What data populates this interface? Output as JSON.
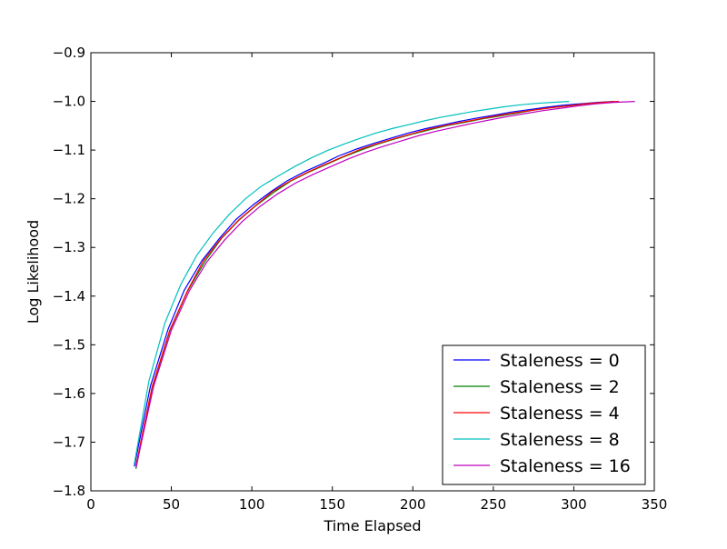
{
  "chart_data": {
    "type": "line",
    "title": "",
    "xlabel": "Time Elapsed",
    "ylabel": "Log Likelihood",
    "xlim": [
      0,
      350
    ],
    "ylim": [
      -1.8,
      -0.9
    ],
    "xticks": [
      0,
      50,
      100,
      150,
      200,
      250,
      300,
      350
    ],
    "yticks": [
      -1.8,
      -1.7,
      -1.6,
      -1.5,
      -1.4,
      -1.3,
      -1.2,
      -1.1,
      -1.0,
      -0.9
    ],
    "xtick_labels": [
      "0",
      "50",
      "100",
      "150",
      "200",
      "250",
      "300",
      "350"
    ],
    "ytick_labels": [
      "−1.8",
      "−1.7",
      "−1.6",
      "−1.5",
      "−1.4",
      "−1.3",
      "−1.2",
      "−1.1",
      "−1.0",
      "−0.9"
    ],
    "grid": false,
    "legend_position": "lower-right",
    "series": [
      {
        "name": "Staleness = 0",
        "color": "#0000ff",
        "x": [
          27,
          37,
          48,
          58,
          69,
          80,
          90,
          101,
          112,
          122,
          133,
          144,
          154,
          165,
          176,
          187,
          197,
          208,
          219,
          229,
          240,
          251,
          261,
          272,
          283,
          293,
          304,
          315,
          325
        ],
        "y": [
          -1.75,
          -1.585,
          -1.468,
          -1.388,
          -1.327,
          -1.281,
          -1.243,
          -1.212,
          -1.185,
          -1.163,
          -1.144,
          -1.128,
          -1.112,
          -1.098,
          -1.086,
          -1.075,
          -1.065,
          -1.056,
          -1.048,
          -1.041,
          -1.034,
          -1.028,
          -1.022,
          -1.017,
          -1.012,
          -1.008,
          -1.005,
          -1.002,
          -1.0
        ]
      },
      {
        "name": "Staleness = 2",
        "color": "#008000",
        "x": [
          28,
          38,
          49,
          60,
          71,
          81,
          92,
          103,
          114,
          124,
          135,
          146,
          157,
          168,
          178,
          189,
          200,
          211,
          221,
          232,
          243,
          254,
          265,
          275,
          286,
          297,
          308,
          318,
          328
        ],
        "y": [
          -1.755,
          -1.59,
          -1.472,
          -1.39,
          -1.328,
          -1.282,
          -1.244,
          -1.213,
          -1.186,
          -1.164,
          -1.146,
          -1.13,
          -1.114,
          -1.1,
          -1.088,
          -1.077,
          -1.067,
          -1.058,
          -1.05,
          -1.043,
          -1.036,
          -1.03,
          -1.024,
          -1.018,
          -1.013,
          -1.009,
          -1.005,
          -1.002,
          -1.0
        ]
      },
      {
        "name": "Staleness = 4",
        "color": "#ff0000",
        "x": [
          28,
          38,
          49,
          60,
          70,
          81,
          92,
          103,
          113,
          124,
          135,
          146,
          157,
          167,
          178,
          189,
          200,
          210,
          221,
          232,
          243,
          253,
          264,
          275,
          286,
          297,
          307,
          318,
          328
        ],
        "y": [
          -1.748,
          -1.587,
          -1.47,
          -1.389,
          -1.327,
          -1.281,
          -1.243,
          -1.212,
          -1.185,
          -1.163,
          -1.145,
          -1.129,
          -1.113,
          -1.099,
          -1.087,
          -1.076,
          -1.066,
          -1.057,
          -1.049,
          -1.042,
          -1.035,
          -1.029,
          -1.023,
          -1.018,
          -1.013,
          -1.009,
          -1.005,
          -1.002,
          -1.0
        ]
      },
      {
        "name": "Staleness = 8",
        "color": "#00bfbf",
        "x": [
          27,
          36,
          46,
          56,
          66,
          76,
          86,
          96,
          106,
          117,
          127,
          137,
          147,
          157,
          167,
          177,
          187,
          197,
          207,
          217,
          227,
          237,
          247,
          257,
          267,
          277,
          287,
          297
        ],
        "y": [
          -1.745,
          -1.575,
          -1.455,
          -1.375,
          -1.315,
          -1.27,
          -1.232,
          -1.2,
          -1.174,
          -1.152,
          -1.133,
          -1.116,
          -1.101,
          -1.088,
          -1.076,
          -1.065,
          -1.056,
          -1.048,
          -1.04,
          -1.033,
          -1.027,
          -1.021,
          -1.016,
          -1.011,
          -1.007,
          -1.004,
          -1.002,
          -1.0
        ]
      },
      {
        "name": "Staleness = 16",
        "color": "#bf00bf",
        "x": [
          28,
          39,
          50,
          61,
          72,
          83,
          94,
          105,
          116,
          127,
          138,
          149,
          160,
          171,
          182,
          193,
          204,
          215,
          226,
          237,
          248,
          259,
          270,
          281,
          292,
          303,
          314,
          325,
          338
        ],
        "y": [
          -1.752,
          -1.585,
          -1.47,
          -1.39,
          -1.33,
          -1.285,
          -1.247,
          -1.216,
          -1.19,
          -1.168,
          -1.15,
          -1.134,
          -1.118,
          -1.104,
          -1.092,
          -1.081,
          -1.07,
          -1.061,
          -1.053,
          -1.045,
          -1.038,
          -1.031,
          -1.025,
          -1.019,
          -1.014,
          -1.009,
          -1.005,
          -1.002,
          -1.0
        ]
      }
    ]
  }
}
